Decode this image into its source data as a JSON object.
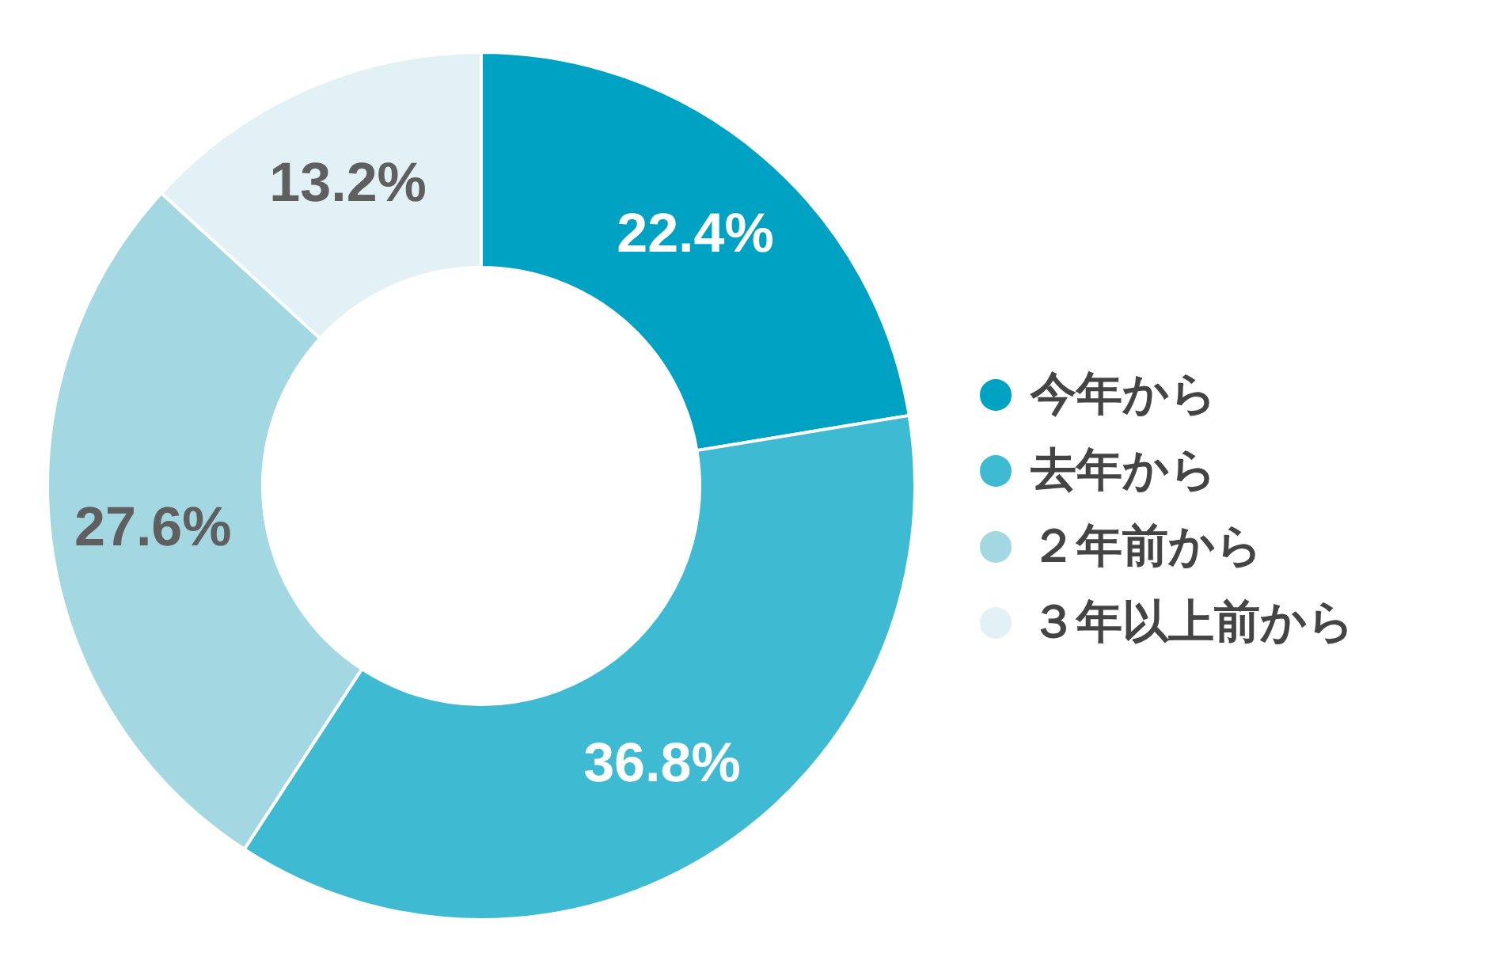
{
  "chart_data": {
    "type": "donut",
    "categories": [
      "今年から",
      "去年から",
      "２年前から",
      "３年以上前から"
    ],
    "values": [
      22.4,
      36.8,
      27.6,
      13.2
    ],
    "value_labels": [
      "22.4%",
      "36.8%",
      "27.6%",
      "13.2%"
    ],
    "colors": [
      "#00a2c3",
      "#3ebbd3",
      "#a3d8e2",
      "#e1f1f6"
    ],
    "legend": "right"
  }
}
